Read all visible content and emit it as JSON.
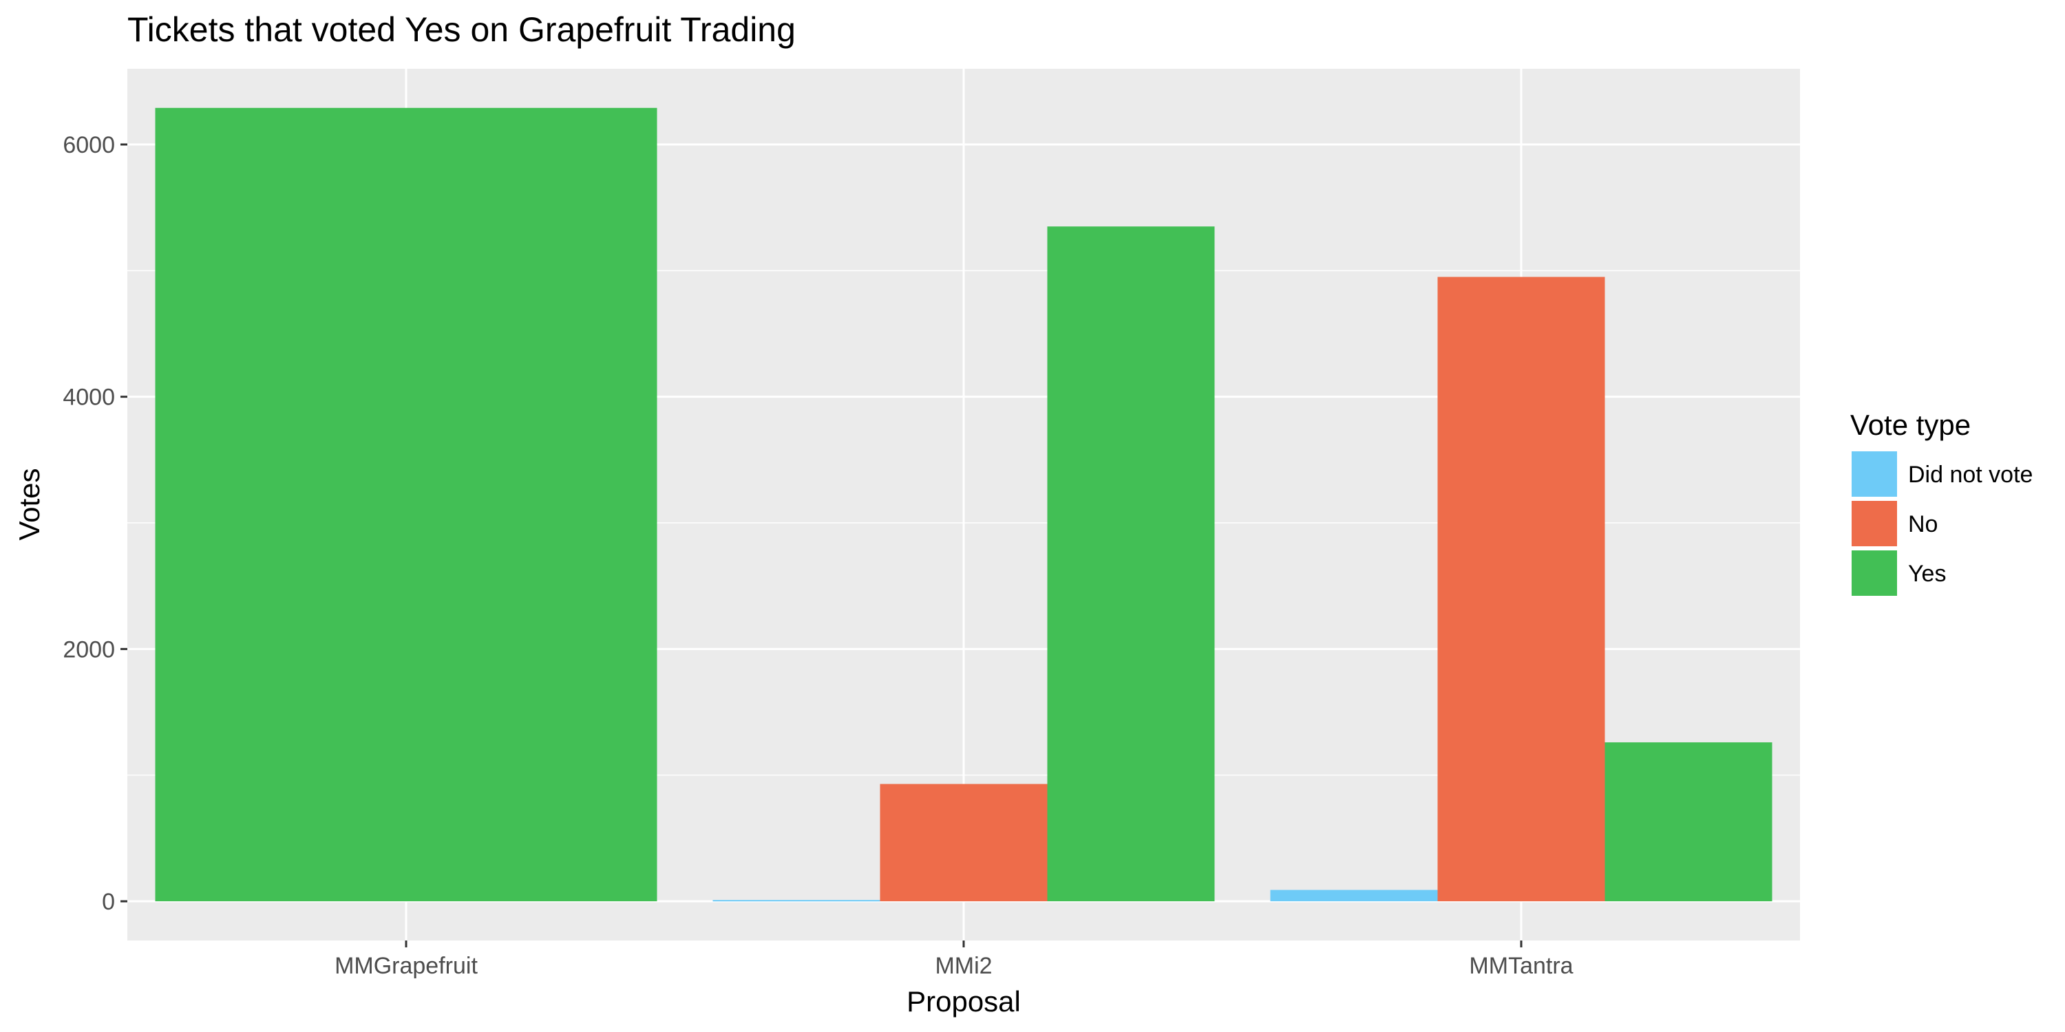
{
  "chart_data": {
    "type": "bar",
    "title": "Tickets that voted Yes on Grapefruit Trading",
    "xlabel": "Proposal",
    "ylabel": "Votes",
    "categories": [
      "MMGrapefruit",
      "MMi2",
      "MMTantra"
    ],
    "series": [
      {
        "name": "Did not vote",
        "color": "#6ecbf7",
        "values": [
          0,
          10,
          90
        ]
      },
      {
        "name": "No",
        "color": "#ee6c4a",
        "values": [
          0,
          930,
          4950
        ]
      },
      {
        "name": "Yes",
        "color": "#42bf55",
        "values": [
          6290,
          5350,
          1260
        ]
      }
    ],
    "ylim": [
      0,
      6600
    ],
    "yticks": [
      0,
      2000,
      4000,
      6000
    ],
    "legend": {
      "title": "Vote type",
      "position": "right"
    },
    "grid": true,
    "panel_background": "#ebebeb"
  }
}
